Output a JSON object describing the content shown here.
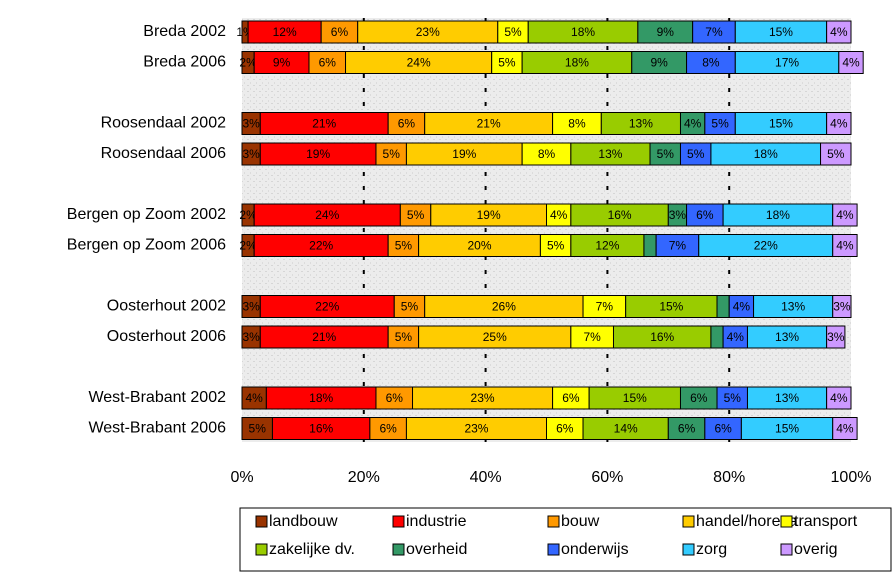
{
  "chart_data": {
    "type": "stacked_bar_horizontal",
    "categories": [
      "Breda 2002",
      "Breda 2006",
      "Roosendaal 2002",
      "Roosendaal 2006",
      "Bergen op Zoom 2002",
      "Bergen op Zoom 2006",
      "Oosterhout 2002",
      "Oosterhout 2006",
      "West-Brabant 2002",
      "West-Brabant 2006"
    ],
    "series": [
      {
        "name": "landbouw",
        "color": "#993300",
        "values": [
          1,
          2,
          3,
          3,
          2,
          2,
          3,
          3,
          4,
          5
        ],
        "value_labels": [
          "1%",
          "2%",
          "3%",
          "3%",
          "2%",
          "2%",
          "3%",
          "3%",
          "4%",
          "5%"
        ]
      },
      {
        "name": "industrie",
        "color": "#ff0000",
        "values": [
          12,
          9,
          21,
          19,
          24,
          22,
          22,
          21,
          18,
          16
        ],
        "value_labels": [
          "12%",
          "9%",
          "21%",
          "19%",
          "24%",
          "22%",
          "22%",
          "21%",
          "18%",
          "16%"
        ]
      },
      {
        "name": "bouw",
        "color": "#ff9900",
        "values": [
          6,
          6,
          6,
          5,
          5,
          5,
          5,
          5,
          6,
          6
        ],
        "value_labels": [
          "6%",
          "6%",
          "6%",
          "5%",
          "5%",
          "5%",
          "5%",
          "5%",
          "6%",
          "6%"
        ]
      },
      {
        "name": "handel/horeca",
        "color": "#ffcc00",
        "values": [
          23,
          24,
          21,
          19,
          19,
          20,
          26,
          25,
          23,
          23
        ],
        "value_labels": [
          "23%",
          "24%",
          "21%",
          "19%",
          "19%",
          "20%",
          "26%",
          "25%",
          "23%",
          "23%"
        ]
      },
      {
        "name": "transport",
        "color": "#ffff00",
        "values": [
          5,
          5,
          8,
          8,
          4,
          5,
          7,
          7,
          6,
          6
        ],
        "value_labels": [
          "5%",
          "5%",
          "8%",
          "8%",
          "4%",
          "5%",
          "7%",
          "7%",
          "6%",
          "6%"
        ]
      },
      {
        "name": "zakelijke dv.",
        "color": "#99cc00",
        "values": [
          18,
          18,
          13,
          13,
          16,
          12,
          15,
          16,
          15,
          14
        ],
        "value_labels": [
          "18%",
          "18%",
          "13%",
          "13%",
          "16%",
          "12%",
          "15%",
          "16%",
          "15%",
          "14%"
        ]
      },
      {
        "name": "overheid",
        "color": "#339966",
        "values": [
          9,
          9,
          4,
          5,
          3,
          2,
          2,
          2,
          6,
          6
        ],
        "value_labels": [
          "9%",
          "9%",
          "4%",
          "5%",
          "3%",
          null,
          null,
          null,
          "6%",
          "6%"
        ]
      },
      {
        "name": "onderwijs",
        "color": "#3366ff",
        "values": [
          7,
          8,
          5,
          5,
          6,
          7,
          4,
          4,
          5,
          6
        ],
        "value_labels": [
          "7%",
          "8%",
          "5%",
          "5%",
          "6%",
          "7%",
          "4%",
          "4%",
          "5%",
          "6%"
        ]
      },
      {
        "name": "zorg",
        "color": "#33ccff",
        "values": [
          15,
          17,
          15,
          18,
          18,
          22,
          13,
          13,
          13,
          15
        ],
        "value_labels": [
          "15%",
          "17%",
          "15%",
          "18%",
          "18%",
          "22%",
          "13%",
          "13%",
          "13%",
          "15%"
        ]
      },
      {
        "name": "overig",
        "color": "#cc99ff",
        "values": [
          4,
          4,
          4,
          5,
          4,
          4,
          3,
          3,
          4,
          4
        ],
        "value_labels": [
          "4%",
          "4%",
          "4%",
          "5%",
          "4%",
          "4%",
          "3%",
          "3%",
          "4%",
          "4%"
        ]
      }
    ],
    "xlim": [
      0,
      100
    ],
    "xticks": [
      {
        "value": 0,
        "label": "0%"
      },
      {
        "value": 20,
        "label": "20%"
      },
      {
        "value": 40,
        "label": "40%"
      },
      {
        "value": 60,
        "label": "60%"
      },
      {
        "value": 80,
        "label": "80%"
      },
      {
        "value": 100,
        "label": "100%"
      }
    ],
    "grid": true,
    "legend": "bottom"
  }
}
